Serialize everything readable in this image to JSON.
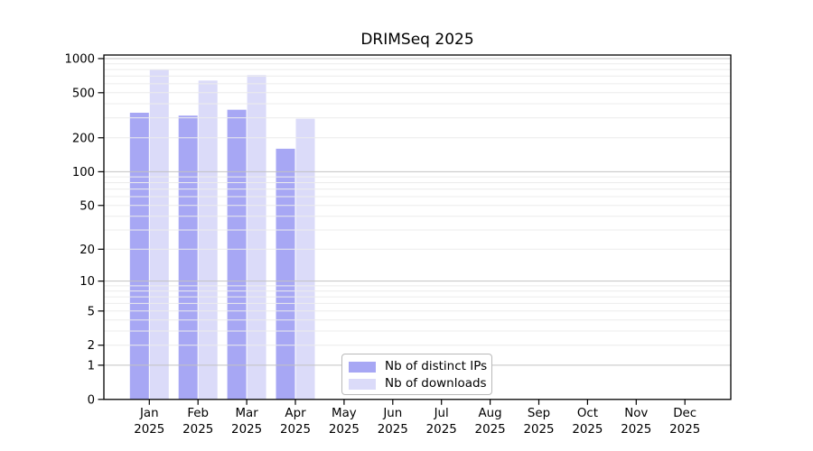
{
  "chart_data": {
    "type": "bar",
    "title": "DRIMSeq 2025",
    "categories": [
      "Jan",
      "Feb",
      "Mar",
      "Apr",
      "May",
      "Jun",
      "Jul",
      "Aug",
      "Sep",
      "Oct",
      "Nov",
      "Dec"
    ],
    "category_year": "2025",
    "series": [
      {
        "name": "Nb of distinct IPs",
        "color": "#a7a7f4",
        "values": [
          333,
          314,
          354,
          160,
          null,
          null,
          null,
          null,
          null,
          null,
          null,
          null
        ]
      },
      {
        "name": "Nb of downloads",
        "color": "#dbdbf9",
        "values": [
          800,
          640,
          715,
          295,
          null,
          null,
          null,
          null,
          null,
          null,
          null,
          null
        ]
      }
    ],
    "yscale": "log1p",
    "ylim": [
      0,
      1075
    ],
    "yticks": [
      1000,
      500,
      200,
      100,
      50,
      20,
      10,
      5,
      2,
      1,
      0
    ],
    "grid": {
      "minor_values": [
        2,
        3,
        4,
        5,
        6,
        7,
        8,
        9,
        20,
        30,
        40,
        50,
        60,
        70,
        80,
        90,
        200,
        300,
        400,
        500,
        600,
        700,
        800,
        900
      ],
      "major_values": [
        1,
        10,
        100,
        1000
      ],
      "minor_color": "#ececec",
      "major_color": "#c2c2c2"
    },
    "axis_color": "#000000",
    "background": "#ffffff",
    "legend_position": "inside-bottom-center"
  }
}
